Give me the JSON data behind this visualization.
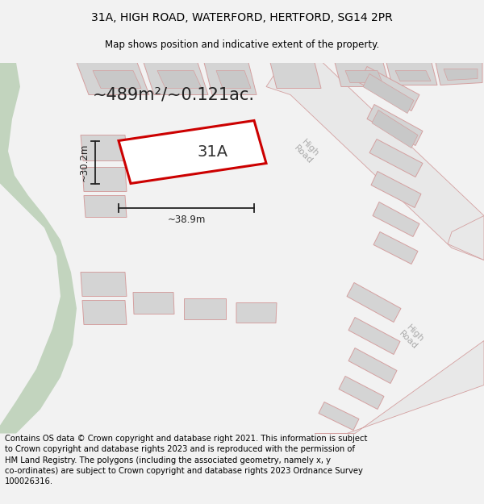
{
  "title": "31A, HIGH ROAD, WATERFORD, HERTFORD, SG14 2PR",
  "subtitle": "Map shows position and indicative extent of the property.",
  "footer": "Contains OS data © Crown copyright and database right 2021. This information is subject\nto Crown copyright and database rights 2023 and is reproduced with the permission of\nHM Land Registry. The polygons (including the associated geometry, namely x, y\nco-ordinates) are subject to Crown copyright and database rights 2023 Ordnance Survey\n100026316.",
  "area_text": "~489m²/~0.121ac.",
  "width_text": "~38.9m",
  "height_text": "~30.2m",
  "label_31a": "31A",
  "road_label1": "High\nRoad",
  "road_label2": "High\nRoad",
  "bg_color": "#f2f2f2",
  "map_bg": "#ffffff",
  "green_color": "#c2d4be",
  "bldg_fill": "#d4d4d4",
  "bldg_edge": "#d4a0a0",
  "road_fill": "#e8e8e8",
  "road_edge": "#d4a0a0",
  "highlight_red": "#cc0000",
  "dim_color": "#222222",
  "title_fontsize": 10,
  "subtitle_fontsize": 8.5,
  "footer_fontsize": 7.2,
  "area_fontsize": 15,
  "label_fontsize": 14,
  "dim_fontsize": 8.5,
  "road_fontsize": 8
}
